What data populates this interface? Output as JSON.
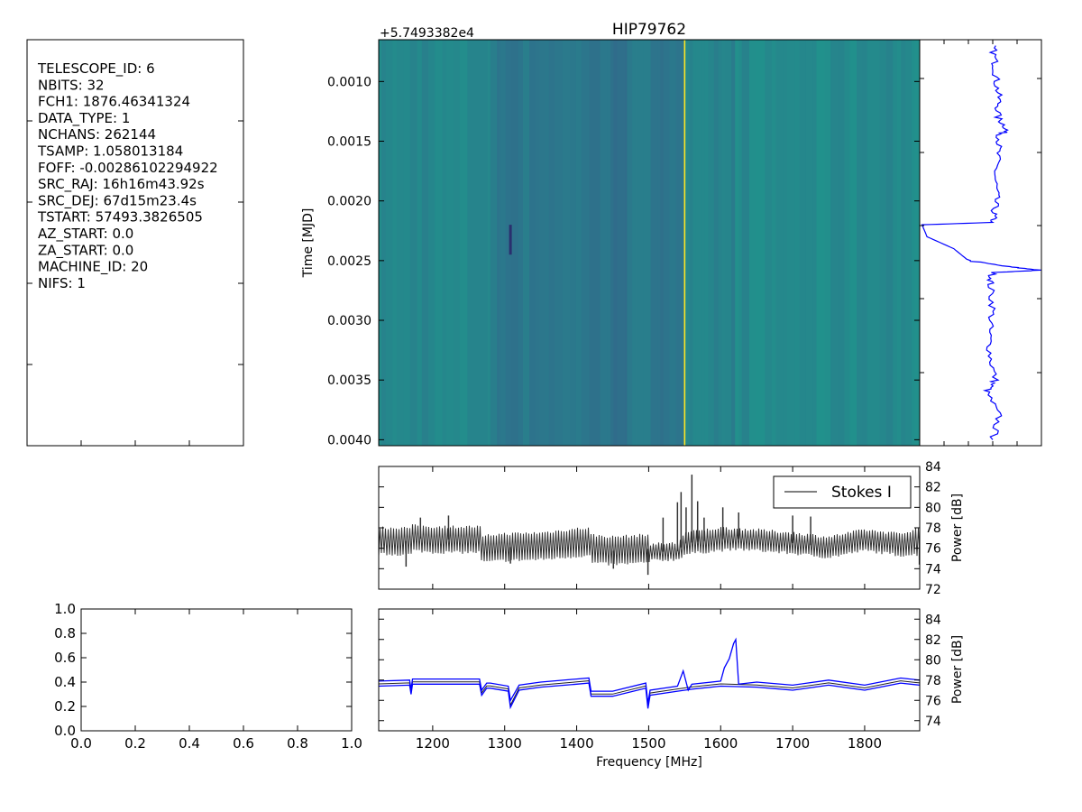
{
  "header_panel": {
    "lines": [
      "TELESCOPE_ID:  6",
      "NBITS:  32",
      "FCH1:  1876.46341324",
      "DATA_TYPE:  1",
      "NCHANS:  262144",
      "TSAMP:  1.058013184",
      "FOFF:  -0.00286102294922",
      "SRC_RAJ:  16h16m43.92s",
      "SRC_DEJ:  67d15m23.4s",
      "TSTART:  57493.3826505",
      "AZ_START:  0.0",
      "ZA_START:  0.0",
      "MACHINE_ID:  20",
      "NIFS:  1"
    ]
  },
  "colors": {
    "viridis_low": "#3b528b",
    "viridis_mid": "#21918c",
    "viridis_high": "#fde725",
    "blue_line": "#0000ff",
    "black_line": "#333333"
  },
  "chart_data": [
    {
      "id": "waterfall",
      "type": "heatmap",
      "title": "HIP79762",
      "ylabel": "Time [MJD]",
      "y_offset_label": "+5.7493382e4",
      "x_range": [
        1125,
        1876.46
      ],
      "ylim": [
        0.00405,
        0.00065
      ],
      "yticks": [
        0.001,
        0.0015,
        0.002,
        0.0025,
        0.003,
        0.0035,
        0.004
      ],
      "ytick_labels": [
        "0.0010",
        "0.0015",
        "0.0020",
        "0.0025",
        "0.0030",
        "0.0035",
        "0.0040"
      ],
      "colormap": "viridis",
      "bands": [
        {
          "from": 1125,
          "to": 1280,
          "level": 0.42
        },
        {
          "from": 1280,
          "to": 1418,
          "level": 0.3
        },
        {
          "from": 1418,
          "to": 1470,
          "level": 0.26
        },
        {
          "from": 1470,
          "to": 1550,
          "level": 0.3
        },
        {
          "from": 1550,
          "to": 1620,
          "level": 0.38
        },
        {
          "from": 1620,
          "to": 1876.46,
          "level": 0.44
        }
      ],
      "bright_lines": [
        1550
      ],
      "dark_segments": [
        {
          "x": 1308,
          "t0": 0.0022,
          "t1": 0.00245
        }
      ]
    },
    {
      "id": "time_series",
      "type": "line",
      "series": [
        {
          "y": [
            0.0007,
            0.00085,
            0.001,
            0.00115,
            0.0013,
            0.0014,
            0.00145,
            0.0016,
            0.0018,
            0.00195,
            0.0021,
            0.00218,
            0.0022,
            0.0023,
            0.0024,
            0.0025,
            0.00255,
            0.00258,
            0.0026,
            0.0027,
            0.0029,
            0.0031,
            0.0033,
            0.0035,
            0.0036,
            0.0038,
            0.004
          ],
          "x": [
            0.6,
            0.62,
            0.63,
            0.65,
            0.64,
            0.72,
            0.66,
            0.64,
            0.62,
            0.63,
            0.61,
            0.6,
            0.02,
            0.06,
            0.28,
            0.4,
            0.72,
            0.99,
            0.6,
            0.58,
            0.6,
            0.57,
            0.58,
            0.62,
            0.55,
            0.65,
            0.6
          ]
        }
      ],
      "xlim": [
        0,
        1
      ],
      "ylim": [
        0.00405,
        0.00065
      ]
    },
    {
      "id": "spectrum",
      "type": "line",
      "ylabel": "Power [dB]",
      "xlim": [
        1125,
        1876.46
      ],
      "ylim": [
        72,
        84
      ],
      "yticks": [
        72,
        74,
        76,
        78,
        80,
        82,
        84
      ],
      "legend": "Stokes I",
      "legend_position": "top-right",
      "envelope": {
        "x": [
          1125,
          1170,
          1171,
          1200,
          1267,
          1268,
          1280,
          1300,
          1350,
          1400,
          1418,
          1419,
          1450,
          1499,
          1500,
          1501,
          1540,
          1550,
          1560,
          1600,
          1625,
          1650,
          1700,
          1750,
          1800,
          1850,
          1876.46
        ],
        "upper": [
          78.0,
          78.0,
          78.2,
          78.1,
          78.1,
          77.0,
          77.3,
          77.4,
          77.5,
          77.9,
          78.0,
          77.3,
          77.1,
          77.3,
          77.0,
          76.4,
          76.5,
          77.5,
          77.6,
          78.0,
          77.9,
          77.8,
          77.5,
          77.1,
          77.8,
          77.4,
          78.0
        ],
        "lower": [
          75.4,
          75.4,
          75.8,
          75.6,
          75.6,
          74.6,
          74.7,
          74.8,
          74.9,
          75.2,
          75.3,
          74.6,
          74.4,
          74.6,
          74.3,
          74.8,
          74.9,
          75.4,
          75.5,
          75.8,
          75.9,
          75.8,
          75.5,
          75.1,
          75.8,
          75.3,
          75.4
        ]
      },
      "spikes": [
        {
          "x": 1163,
          "y": 74.2
        },
        {
          "x": 1183,
          "y": 79.0
        },
        {
          "x": 1222,
          "y": 79.2
        },
        {
          "x": 1308,
          "y": 74.5
        },
        {
          "x": 1451,
          "y": 74.0
        },
        {
          "x": 1499,
          "y": 73.4
        },
        {
          "x": 1520,
          "y": 79.0
        },
        {
          "x": 1540,
          "y": 80.5
        },
        {
          "x": 1545,
          "y": 81.5
        },
        {
          "x": 1552,
          "y": 80.0
        },
        {
          "x": 1560,
          "y": 83.2
        },
        {
          "x": 1568,
          "y": 80.6
        },
        {
          "x": 1577,
          "y": 79.0
        },
        {
          "x": 1603,
          "y": 80.0
        },
        {
          "x": 1625,
          "y": 79.5
        },
        {
          "x": 1700,
          "y": 79.2
        },
        {
          "x": 1725,
          "y": 79.1
        },
        {
          "x": 1876,
          "y": 74.4
        }
      ]
    },
    {
      "id": "empty_axes",
      "type": "line",
      "xlim": [
        0,
        1
      ],
      "ylim": [
        0,
        1
      ],
      "xticks": [
        0.0,
        0.2,
        0.4,
        0.6,
        0.8,
        1.0
      ],
      "yticks": [
        0.0,
        0.2,
        0.4,
        0.6,
        0.8,
        1.0
      ],
      "tick_labels": [
        "0.0",
        "0.2",
        "0.4",
        "0.6",
        "0.8",
        "1.0"
      ]
    },
    {
      "id": "spectrum_minmax",
      "type": "line",
      "xlabel": "Frequency [MHz]",
      "ylabel": "Power [dB]",
      "xlim": [
        1125,
        1876.46
      ],
      "ylim": [
        73,
        85
      ],
      "xticks": [
        1200,
        1300,
        1400,
        1500,
        1600,
        1700,
        1800
      ],
      "yticks": [
        74,
        76,
        78,
        80,
        82,
        84
      ],
      "series": [
        {
          "name": "",
          "x": [
            1125,
            1168,
            1170,
            1172,
            1265,
            1268,
            1275,
            1280,
            1305,
            1308,
            1320,
            1350,
            1400,
            1417,
            1420,
            1450,
            1496,
            1499,
            1502,
            1540,
            1560,
            1600,
            1650,
            1700,
            1750,
            1800,
            1850,
            1876.46
          ],
          "y": [
            77.4,
            77.5,
            76.6,
            77.6,
            77.6,
            76.5,
            77.2,
            77.2,
            76.9,
            75.3,
            77.0,
            77.3,
            77.6,
            77.7,
            76.4,
            76.4,
            77.2,
            75.2,
            76.5,
            76.9,
            77.1,
            77.4,
            77.3,
            77.0,
            77.5,
            77.0,
            77.7,
            77.5
          ]
        },
        {
          "name": "",
          "x": [
            1125,
            1168,
            1170,
            1172,
            1265,
            1268,
            1275,
            1280,
            1305,
            1308,
            1320,
            1350,
            1400,
            1417,
            1420,
            1450,
            1496,
            1499,
            1502,
            1540,
            1548,
            1555,
            1560,
            1600,
            1605,
            1612,
            1618,
            1621,
            1625,
            1650,
            1700,
            1750,
            1800,
            1850,
            1876.46
          ],
          "y": [
            77.9,
            78.0,
            77.1,
            78.1,
            78.1,
            77.0,
            77.7,
            77.7,
            77.4,
            76.0,
            77.5,
            77.8,
            78.1,
            78.2,
            76.9,
            76.9,
            77.7,
            75.7,
            77.0,
            77.4,
            78.9,
            77.0,
            77.6,
            77.9,
            79.2,
            80.1,
            81.6,
            82.0,
            77.6,
            77.8,
            77.5,
            78.0,
            77.5,
            78.2,
            78.0
          ]
        }
      ]
    }
  ]
}
